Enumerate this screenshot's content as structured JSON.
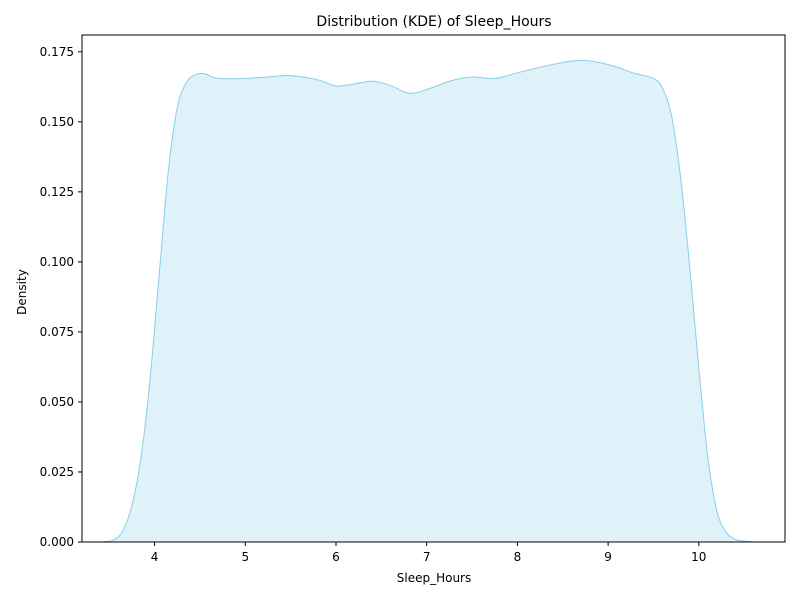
{
  "chart_data": {
    "type": "area",
    "subtype": "kde",
    "title": "Distribution (KDE) of Sleep_Hours",
    "xlabel": "Sleep_Hours",
    "ylabel": "Density",
    "xlim": [
      3.2,
      10.95
    ],
    "ylim": [
      0.0,
      0.181
    ],
    "grid": false,
    "legend": null,
    "colors": {
      "line": "#87ceeb",
      "fill": "#87ceeb",
      "fill_opacity": 0.27,
      "axes": "#000000"
    },
    "x_ticks": [
      {
        "value": 4,
        "label": "4"
      },
      {
        "value": 5,
        "label": "5"
      },
      {
        "value": 6,
        "label": "6"
      },
      {
        "value": 7,
        "label": "7"
      },
      {
        "value": 8,
        "label": "8"
      },
      {
        "value": 9,
        "label": "9"
      },
      {
        "value": 10,
        "label": "10"
      }
    ],
    "y_ticks": [
      {
        "value": 0.0,
        "label": "0.000"
      },
      {
        "value": 0.025,
        "label": "0.025"
      },
      {
        "value": 0.05,
        "label": "0.050"
      },
      {
        "value": 0.075,
        "label": "0.075"
      },
      {
        "value": 0.1,
        "label": "0.100"
      },
      {
        "value": 0.125,
        "label": "0.125"
      },
      {
        "value": 0.15,
        "label": "0.150"
      },
      {
        "value": 0.175,
        "label": "0.175"
      }
    ],
    "series": [
      {
        "name": "Sleep_Hours",
        "x": [
          3.43,
          3.55,
          3.65,
          3.75,
          3.85,
          3.95,
          4.05,
          4.15,
          4.25,
          4.35,
          4.45,
          4.55,
          4.7,
          5.0,
          5.25,
          5.5,
          5.8,
          6.0,
          6.2,
          6.4,
          6.6,
          6.8,
          7.0,
          7.25,
          7.5,
          7.75,
          8.0,
          8.25,
          8.5,
          8.7,
          8.9,
          9.1,
          9.3,
          9.5,
          9.6,
          9.7,
          9.8,
          9.9,
          10.0,
          10.1,
          10.2,
          10.3,
          10.4,
          10.5,
          10.6
        ],
        "y": [
          0.0001,
          0.0008,
          0.004,
          0.013,
          0.03,
          0.058,
          0.095,
          0.132,
          0.155,
          0.164,
          0.1668,
          0.1672,
          0.1655,
          0.1655,
          0.166,
          0.1665,
          0.165,
          0.1628,
          0.1635,
          0.1645,
          0.163,
          0.1602,
          0.1615,
          0.1645,
          0.166,
          0.1655,
          0.1675,
          0.1695,
          0.1712,
          0.172,
          0.1712,
          0.1695,
          0.1672,
          0.1655,
          0.162,
          0.152,
          0.13,
          0.098,
          0.062,
          0.03,
          0.011,
          0.0035,
          0.001,
          0.0003,
          0.0001
        ]
      }
    ]
  }
}
